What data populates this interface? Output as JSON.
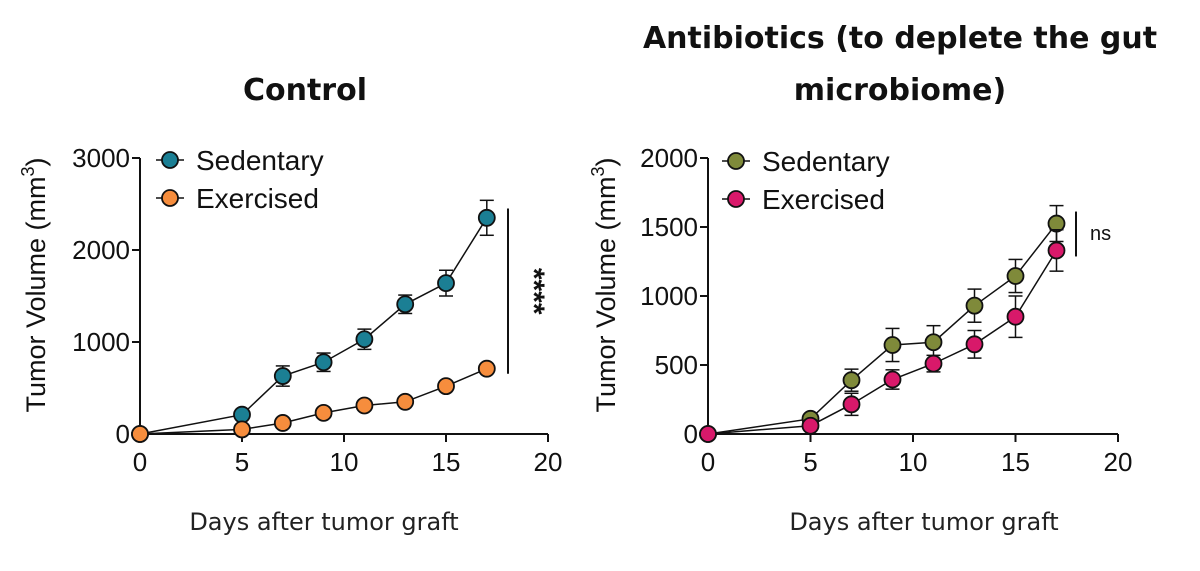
{
  "chart_data": [
    {
      "type": "line",
      "title": "Control",
      "xlabel": "Days after tumor graft",
      "ylabel": "Tumor Volume (mm",
      "ylabel_sup": "3",
      "ylabel_close": ")",
      "xlim": [
        0,
        20
      ],
      "ylim": [
        0,
        3000
      ],
      "xticks": [
        0,
        5,
        10,
        15,
        20
      ],
      "yticks": [
        0,
        1000,
        2000,
        3000
      ],
      "grid": false,
      "legend_position": "top-left",
      "x": [
        0,
        5,
        7,
        9,
        11,
        13,
        15,
        17
      ],
      "series": [
        {
          "name": "Sedentary",
          "color": "#1b7f94",
          "values": [
            0,
            210,
            630,
            780,
            1030,
            1410,
            1640,
            2350
          ],
          "error": [
            0,
            40,
            110,
            100,
            110,
            100,
            140,
            190
          ]
        },
        {
          "name": "Exercised",
          "color": "#f68d3d",
          "values": [
            0,
            50,
            120,
            230,
            310,
            350,
            520,
            710
          ],
          "error": [
            0,
            15,
            25,
            30,
            30,
            30,
            40,
            40
          ]
        }
      ],
      "annotation": "****"
    },
    {
      "type": "line",
      "title_lines": [
        "Antibiotics (to deplete the gut",
        "microbiome)"
      ],
      "xlabel": "Days after tumor graft",
      "ylabel": "Tumor Volume (mm",
      "ylabel_sup": "3",
      "ylabel_close": ")",
      "xlim": [
        0,
        20
      ],
      "ylim": [
        0,
        2000
      ],
      "xticks": [
        0,
        5,
        10,
        15,
        20
      ],
      "yticks": [
        0,
        500,
        1000,
        1500,
        2000
      ],
      "grid": false,
      "legend_position": "top-left",
      "x": [
        0,
        5,
        7,
        9,
        11,
        13,
        15,
        17
      ],
      "series": [
        {
          "name": "Sedentary",
          "color": "#7f8a3a",
          "values": [
            0,
            110,
            390,
            645,
            665,
            930,
            1145,
            1525
          ],
          "error": [
            0,
            20,
            80,
            120,
            120,
            120,
            120,
            130
          ]
        },
        {
          "name": "Exercised",
          "color": "#d8196a",
          "values": [
            0,
            60,
            215,
            395,
            510,
            650,
            850,
            1330
          ],
          "error": [
            0,
            15,
            80,
            70,
            60,
            100,
            150,
            150
          ]
        }
      ],
      "annotation": "ns"
    }
  ]
}
